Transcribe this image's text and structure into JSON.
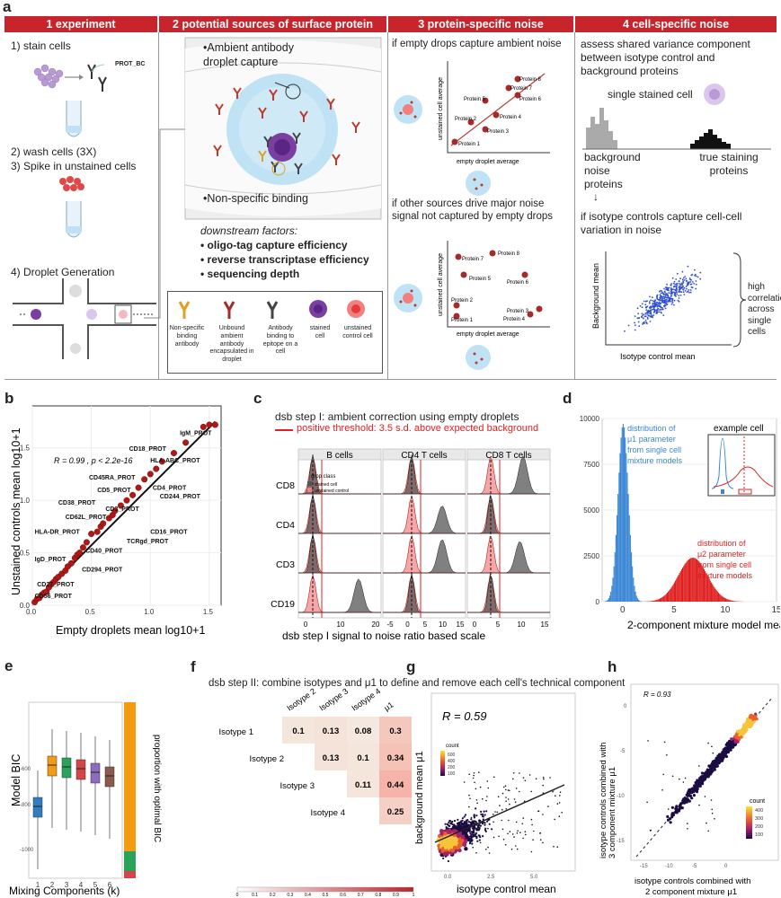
{
  "panel_a": {
    "letter": "a",
    "headers": [
      "1 experiment",
      "2  potential sources of surface protein noise",
      "3 protein-specific noise",
      "4 cell-specific noise"
    ],
    "experiment": {
      "step1": "1) stain cells",
      "prot_bc": "PROT_BC",
      "step2": "2) wash cells (3X)",
      "step3": "3) Spike in unstained cells",
      "step4": "4) Droplet Generation"
    },
    "sources": {
      "ambient": "•Ambient antibody droplet capture",
      "nonspecific": "•Non-specific binding",
      "downstream_title": "downstream factors:",
      "downstream": [
        "• oligo-tag capture efficiency",
        "• reverse transcriptase efficiency",
        "• sequencing depth"
      ],
      "legend": [
        "Non-specific binding antibody",
        "Unbound ambient antibody encapsulated in droplet",
        "Antibody binding to epitope on a cell",
        "stained cell",
        "unstained control cell"
      ]
    },
    "protein_noise": {
      "text1": "if empty drops capture ambient noise",
      "text2": "if other sources drive major noise signal not captured by empty drops",
      "ylabel": "unstained cell average",
      "xlabel": "empty droplet average",
      "top_proteins": [
        "Protein 1",
        "Protein 2",
        "Protein 3",
        "Protein 4",
        "Protein 5",
        "Protein 6",
        "Protein 7",
        "Protein 8"
      ],
      "bottom_proteins": [
        "Protein 1",
        "Protein 2",
        "Protein 3",
        "Protein 4",
        "Protein 5",
        "Protein 6",
        "Protein 7",
        "Protein 8"
      ]
    },
    "cell_noise": {
      "text1": "assess shared variance component between isotype control and background proteins",
      "single_cell": "single stained cell",
      "background_label": "background noise proteins",
      "true_label": "true staining proteins",
      "text2": "if isotype controls capture cell-cell variation in noise",
      "ylabel": "Background mean",
      "xlabel": "Isotype control mean",
      "brace_label": "high correlation across single cells"
    }
  },
  "panel_b": {
    "letter": "b",
    "ylabel": "Unstained controls mean log10+1",
    "xlabel": "Empty droplets mean log10+1",
    "stat": "R = 0.99 , p < 2.2e-16",
    "xticks": [
      "0.0",
      "0.5",
      "1.0",
      "1.5"
    ],
    "yticks": [
      "0.0",
      "0.5",
      "1.0",
      "1.5"
    ],
    "labels": [
      "IgM_PROT",
      "CD18_PROT",
      "HLA-ABC_PROT",
      "CD45RA_PROT",
      "CD4_PROT",
      "CD5_PROT",
      "CD244_PROT",
      "CD38_PROT",
      "CD3_PROT",
      "CD62L_PROT",
      "CD16_PROT",
      "HLA-DR_PROT",
      "TCRgd_PROT",
      "CD40_PROT",
      "IgD_PROT",
      "CD294_PROT",
      "CD27_PROT",
      "CD56_PROT"
    ]
  },
  "panel_c": {
    "letter": "c",
    "title": "dsb step I: ambient correction using empty droplets",
    "subtitle": "positive threshold: 3.5 s.d. above expected background",
    "facets": [
      "B cells",
      "CD4 T cells",
      "CD8 T cells"
    ],
    "rows": [
      "CD8",
      "CD4",
      "CD3",
      "CD19"
    ],
    "legend_title": "drop class",
    "legend_items": [
      "stained cell",
      "unstained control"
    ],
    "xticks_b": [
      "0",
      "10",
      "20"
    ],
    "xticks_cd4": [
      "-5",
      "0",
      "5",
      "10",
      "15"
    ],
    "xticks_cd8": [
      "0",
      "5",
      "10",
      "15"
    ],
    "xlabel": "dsb step I signal to noise ratio based scale"
  },
  "panel_d": {
    "letter": "d",
    "yticks": [
      "0",
      "2500",
      "5000",
      "7500",
      "10000"
    ],
    "xticks": [
      "0",
      "5",
      "10",
      "15"
    ],
    "xlabel": "2-component mixture model means",
    "mu1_label": "distribution of μ1 parameter from single cell mixture models",
    "mu2_label": "distribution of μ2 parameter from single cell mixture models",
    "example_cell": "example cell"
  },
  "panel_e": {
    "letter": "e",
    "ylabel": "Model BIC",
    "xlabel": "Mixing Components (k)",
    "xticks": [
      "1",
      "2",
      "3",
      "4",
      "5",
      "6"
    ],
    "right_label": "proportion with optimal BIC",
    "box_colors": [
      "#2f7ec1",
      "#f39c12",
      "#2aa35a",
      "#d64545",
      "#8e6bbf",
      "#8b5a4a"
    ]
  },
  "panel_f": {
    "letter": "f",
    "title": "dsb step II: combine isotypes and μ1 to define and remove each cell's technical component",
    "col_labels": [
      "Isotype 2",
      "Isotype 3",
      "Isotype 4",
      "μ1"
    ],
    "row_labels": [
      "Isotype 1",
      "Isotype 2",
      "Isotype 3",
      "Isotype 4"
    ],
    "cells": [
      [
        "0.1",
        "0.13",
        "0.08",
        "0.3"
      ],
      [
        "",
        "0.13",
        "0.1",
        "0.34"
      ],
      [
        "",
        "",
        "0.11",
        "0.44"
      ],
      [
        "",
        "",
        "",
        "0.25"
      ]
    ],
    "scale_ticks": [
      "0",
      "0.1",
      "0.2",
      "0.3",
      "0.4",
      "0.5",
      "0.6",
      "0.7",
      "0.8",
      "0.9",
      "1"
    ]
  },
  "panel_g": {
    "letter": "g",
    "stat": "R = 0.59",
    "ylabel": "background mean μ1",
    "xlabel": "isotype control mean",
    "legend_title": "count",
    "legend_ticks": [
      "600",
      "400",
      "200",
      "100"
    ]
  },
  "panel_h": {
    "letter": "h",
    "stat": "R = 0.93",
    "ylabel": "isotype controls combined with 3 component mixture μ1",
    "xlabel": "isotype controls combined with 2 component mixture μ1",
    "legend_title": "count",
    "legend_ticks": [
      "400",
      "300",
      "200",
      "100"
    ]
  },
  "chart_data": [
    {
      "type": "scatter",
      "id": "b",
      "xlabel": "Empty droplets mean log10+1",
      "ylabel": "Unstained controls mean log10+1",
      "xlim": [
        0,
        1.6
      ],
      "ylim": [
        0,
        1.9
      ],
      "points": [
        [
          0.02,
          0.03
        ],
        [
          0.04,
          0.06
        ],
        [
          0.06,
          0.07
        ],
        [
          0.08,
          0.1
        ],
        [
          0.1,
          0.12
        ],
        [
          0.12,
          0.13
        ],
        [
          0.14,
          0.17
        ],
        [
          0.16,
          0.2
        ],
        [
          0.18,
          0.22
        ],
        [
          0.2,
          0.25
        ],
        [
          0.22,
          0.27
        ],
        [
          0.25,
          0.3
        ],
        [
          0.28,
          0.33
        ],
        [
          0.3,
          0.37
        ],
        [
          0.33,
          0.4
        ],
        [
          0.36,
          0.45
        ],
        [
          0.38,
          0.48
        ],
        [
          0.4,
          0.5
        ],
        [
          0.43,
          0.55
        ],
        [
          0.46,
          0.6
        ],
        [
          0.5,
          0.68
        ],
        [
          0.55,
          0.7
        ],
        [
          0.58,
          0.75
        ],
        [
          0.6,
          0.78
        ],
        [
          0.65,
          0.83
        ],
        [
          0.68,
          0.86
        ],
        [
          0.7,
          0.9
        ],
        [
          0.75,
          0.95
        ],
        [
          0.8,
          1.0
        ],
        [
          0.85,
          1.05
        ],
        [
          0.9,
          1.12
        ],
        [
          0.95,
          1.2
        ],
        [
          1.0,
          1.25
        ],
        [
          1.05,
          1.3
        ],
        [
          1.1,
          1.37
        ],
        [
          1.2,
          1.45
        ],
        [
          1.3,
          1.55
        ],
        [
          1.45,
          1.7
        ],
        [
          1.5,
          1.72
        ],
        [
          1.55,
          1.72
        ]
      ]
    },
    {
      "type": "histogram",
      "id": "d",
      "xlabel": "2-component mixture model means",
      "xlim": [
        -2,
        15
      ],
      "ylim": [
        0,
        10000
      ],
      "series": [
        {
          "name": "mu1",
          "center": 0,
          "sd": 0.5,
          "peak": 9700,
          "color": "#3a86d6"
        },
        {
          "name": "mu2",
          "center": 6.8,
          "sd": 1.4,
          "peak": 2400,
          "color": "#e02020"
        }
      ]
    }
  ]
}
